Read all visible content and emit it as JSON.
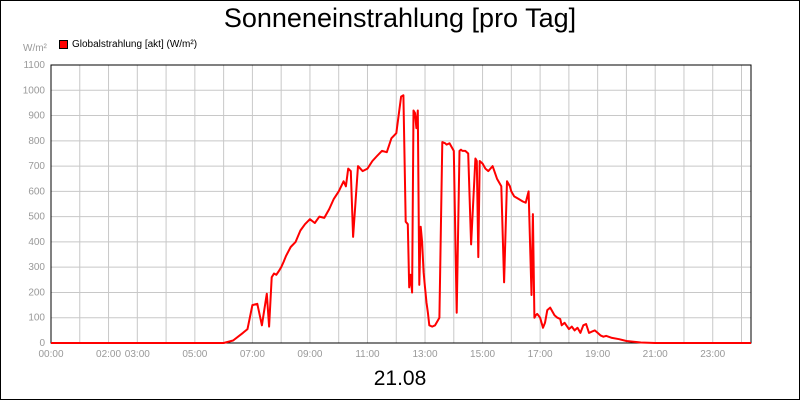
{
  "title": "Sonneneinstrahlung [pro Tag]",
  "date_label": "21.08",
  "unit_label": "W/m²",
  "colors": {
    "series": "#ff0000",
    "grid": "#c8c8c8",
    "tick_text": "#999999"
  },
  "chart_data": {
    "type": "line",
    "title": "Sonneneinstrahlung [pro Tag]",
    "xlabel": "21.08",
    "ylabel": "W/m²",
    "xlim": [
      0,
      24.33
    ],
    "ylim": [
      0,
      1100
    ],
    "grid": true,
    "legend_position": "top-left",
    "y_ticks": [
      0,
      100,
      200,
      300,
      400,
      500,
      600,
      700,
      800,
      900,
      1000,
      1100
    ],
    "x_tick_labels": [
      {
        "x": 0,
        "label": "00:00"
      },
      {
        "x": 2,
        "label": "02:00"
      },
      {
        "x": 3,
        "label": "03:00"
      },
      {
        "x": 5,
        "label": "05:00"
      },
      {
        "x": 7,
        "label": "07:00"
      },
      {
        "x": 9,
        "label": "09:00"
      },
      {
        "x": 11,
        "label": "11:00"
      },
      {
        "x": 13,
        "label": "13:00"
      },
      {
        "x": 15,
        "label": "15:00"
      },
      {
        "x": 17,
        "label": "17:00"
      },
      {
        "x": 19,
        "label": "19:00"
      },
      {
        "x": 21,
        "label": "21:00"
      },
      {
        "x": 23,
        "label": "23:00"
      }
    ],
    "series": [
      {
        "name": "Globalstrahlung [akt] (W/m²)",
        "color": "#ff0000",
        "x": [
          0,
          6.0,
          6.33,
          6.67,
          6.83,
          7.0,
          7.17,
          7.33,
          7.5,
          7.58,
          7.67,
          7.75,
          7.83,
          7.92,
          8.0,
          8.08,
          8.17,
          8.33,
          8.5,
          8.67,
          8.83,
          9.0,
          9.17,
          9.33,
          9.5,
          9.67,
          9.83,
          10.0,
          10.17,
          10.25,
          10.33,
          10.42,
          10.5,
          10.67,
          10.83,
          11.0,
          11.17,
          11.33,
          11.5,
          11.67,
          11.83,
          12.0,
          12.17,
          12.25,
          12.33,
          12.4,
          12.45,
          12.5,
          12.55,
          12.6,
          12.65,
          12.7,
          12.75,
          12.8,
          12.85,
          12.9,
          12.95,
          13.0,
          13.05,
          13.1,
          13.15,
          13.25,
          13.35,
          13.5,
          13.6,
          13.7,
          13.75,
          13.85,
          14.0,
          14.1,
          14.2,
          14.25,
          14.3,
          14.4,
          14.5,
          14.6,
          14.75,
          14.8,
          14.85,
          14.9,
          15.0,
          15.05,
          15.1,
          15.2,
          15.35,
          15.5,
          15.65,
          15.75,
          15.85,
          15.95,
          16.0,
          16.1,
          16.25,
          16.4,
          16.5,
          16.6,
          16.7,
          16.75,
          16.8,
          16.85,
          16.9,
          17.0,
          17.1,
          17.17,
          17.25,
          17.35,
          17.5,
          17.6,
          17.7,
          17.75,
          17.85,
          18.0,
          18.1,
          18.2,
          18.3,
          18.4,
          18.5,
          18.6,
          18.7,
          18.8,
          18.9,
          19.0,
          19.1,
          19.2,
          19.3,
          19.5,
          19.75,
          20.0,
          20.25,
          20.5,
          20.75,
          21.0,
          24.33
        ],
        "y": [
          0,
          0,
          10,
          40,
          55,
          150,
          155,
          70,
          195,
          65,
          260,
          275,
          270,
          285,
          300,
          320,
          345,
          380,
          400,
          445,
          470,
          490,
          475,
          500,
          495,
          530,
          570,
          600,
          640,
          620,
          690,
          680,
          420,
          700,
          680,
          690,
          720,
          740,
          760,
          755,
          810,
          830,
          975,
          980,
          480,
          470,
          220,
          270,
          200,
          920,
          910,
          850,
          920,
          230,
          460,
          400,
          280,
          220,
          160,
          120,
          70,
          65,
          70,
          100,
          795,
          790,
          785,
          790,
          760,
          120,
          760,
          765,
          760,
          760,
          750,
          390,
          730,
          720,
          340,
          720,
          710,
          700,
          690,
          680,
          700,
          650,
          620,
          240,
          640,
          620,
          600,
          580,
          570,
          560,
          555,
          600,
          190,
          510,
          100,
          110,
          115,
          100,
          60,
          80,
          130,
          140,
          110,
          100,
          95,
          70,
          80,
          55,
          65,
          50,
          60,
          40,
          70,
          75,
          40,
          45,
          50,
          40,
          30,
          25,
          28,
          20,
          15,
          8,
          5,
          2,
          1,
          0,
          0
        ]
      }
    ]
  }
}
